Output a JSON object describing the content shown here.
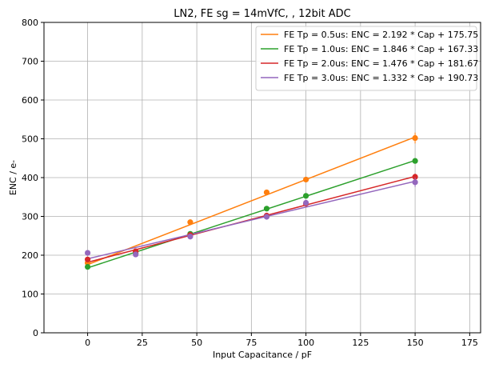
{
  "chart_data": {
    "type": "line",
    "title": "LN2, FE sg = 14mVfC, , 12bit ADC",
    "xlabel": "Input Capacitance / pF",
    "ylabel": "ENC / e-",
    "xlim": [
      -20,
      180
    ],
    "ylim": [
      0,
      800
    ],
    "xticks": [
      0,
      25,
      50,
      75,
      100,
      125,
      150,
      175
    ],
    "yticks": [
      0,
      100,
      200,
      300,
      400,
      500,
      600,
      700,
      800
    ],
    "grid": true,
    "legend_position": "top-right",
    "x": [
      0,
      22,
      47,
      82,
      100,
      150
    ],
    "series": [
      {
        "name": "FE Tp = 0.5us: ENC = 2.192 * Cap + 175.75",
        "color": "#ff7f0e",
        "points": [
          180,
          210,
          285,
          362,
          395,
          502
        ],
        "fit": {
          "slope": 2.192,
          "intercept": 175.75
        },
        "errors": [
          5,
          5,
          5,
          6,
          6,
          14
        ]
      },
      {
        "name": "FE Tp = 1.0us: ENC = 1.846 * Cap + 167.33",
        "color": "#2ca02c",
        "points": [
          170,
          205,
          255,
          320,
          353,
          443
        ],
        "fit": {
          "slope": 1.846,
          "intercept": 167.33
        },
        "errors": [
          4,
          4,
          4,
          5,
          5,
          6
        ]
      },
      {
        "name": "FE Tp = 2.0us: ENC = 1.476 * Cap + 181.67",
        "color": "#d62728",
        "points": [
          189,
          210,
          252,
          302,
          333,
          402
        ],
        "fit": {
          "slope": 1.476,
          "intercept": 181.67
        },
        "errors": [
          4,
          4,
          4,
          5,
          5,
          8
        ]
      },
      {
        "name": "FE Tp = 3.0us: ENC = 1.332 * Cap + 190.73",
        "color": "#9467bd",
        "points": [
          206,
          202,
          248,
          299,
          335,
          388
        ],
        "fit": {
          "slope": 1.332,
          "intercept": 190.73
        },
        "errors": [
          4,
          4,
          4,
          5,
          5,
          12
        ]
      }
    ]
  }
}
